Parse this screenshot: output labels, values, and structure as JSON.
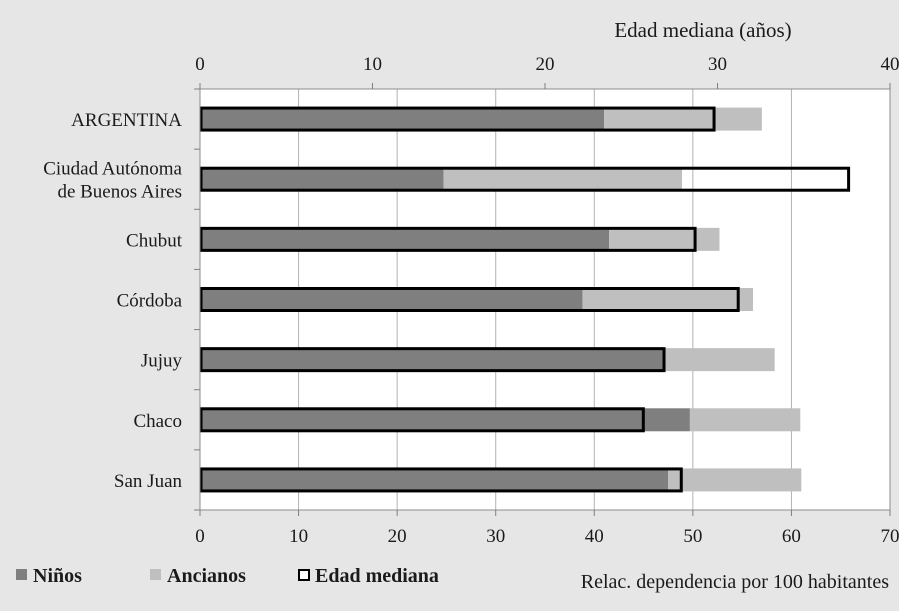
{
  "chart_data": {
    "type": "bar",
    "orientation": "horizontal",
    "categories": [
      [
        "ARGENTINA"
      ],
      [
        "Ciudad Autónoma",
        "de Buenos Aires"
      ],
      [
        "Chubut"
      ],
      [
        "Córdoba"
      ],
      [
        "Jujuy"
      ],
      [
        "Chaco"
      ],
      [
        "San Juan"
      ]
    ],
    "series": [
      {
        "name": "Niños",
        "axis": "bottom",
        "stacked": true,
        "color": "#7f7f7f",
        "values": [
          41,
          24.7,
          41.5,
          38.8,
          47,
          49.7,
          47.5
        ]
      },
      {
        "name": "Ancianos",
        "axis": "bottom",
        "stacked": true,
        "color": "#bfbfbf",
        "values": [
          16,
          24.2,
          11.2,
          17.3,
          11.3,
          11.2,
          13.5
        ]
      },
      {
        "name": "Edad mediana",
        "axis": "top",
        "stacked": false,
        "color": "#ffffff",
        "stroke": "#000000",
        "values": [
          29.8,
          37.6,
          28.7,
          31.2,
          26.9,
          25.7,
          27.9
        ]
      }
    ],
    "axes": {
      "top": {
        "label": "Edad mediana (años)",
        "range": [
          0,
          40
        ],
        "ticks": [
          "0",
          "10",
          "20",
          "30",
          "40"
        ]
      },
      "bottom": {
        "label": "Relac. dependencia por 100 habitantes",
        "range": [
          0,
          70
        ],
        "ticks": [
          "0",
          "10",
          "20",
          "30",
          "40",
          "50",
          "60",
          "70"
        ]
      }
    },
    "grid": true,
    "legend_position": "bottom-left",
    "colors": {
      "background": "#e6e6e6",
      "plot_background": "#ffffff"
    }
  }
}
